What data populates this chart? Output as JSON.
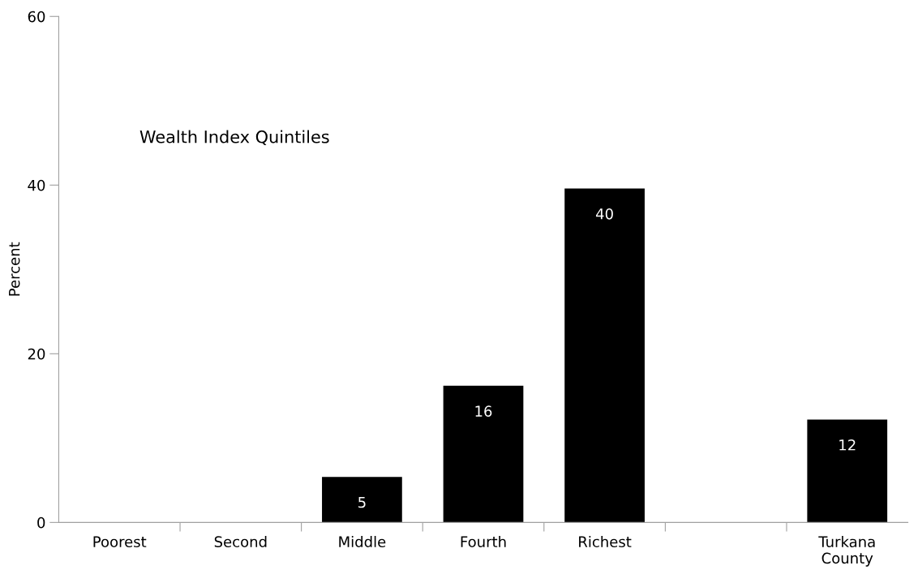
{
  "chart_data": {
    "type": "bar",
    "ylabel": "Percent",
    "categories": [
      "Poorest",
      "Second",
      "Middle",
      "Fourth",
      "Richest",
      null,
      "Turkana\nCounty"
    ],
    "values": [
      null,
      null,
      5.4,
      16.2,
      39.6,
      null,
      12.2
    ],
    "value_labels": [
      null,
      null,
      "5",
      "16",
      "40",
      null,
      "12"
    ],
    "color": "#000000",
    "ylim": [
      0,
      60
    ],
    "yticks": [
      0,
      20,
      40,
      60
    ],
    "grid": false,
    "legend": false,
    "annotations": [
      {
        "text": "Wealth Index Quintiles"
      }
    ]
  }
}
